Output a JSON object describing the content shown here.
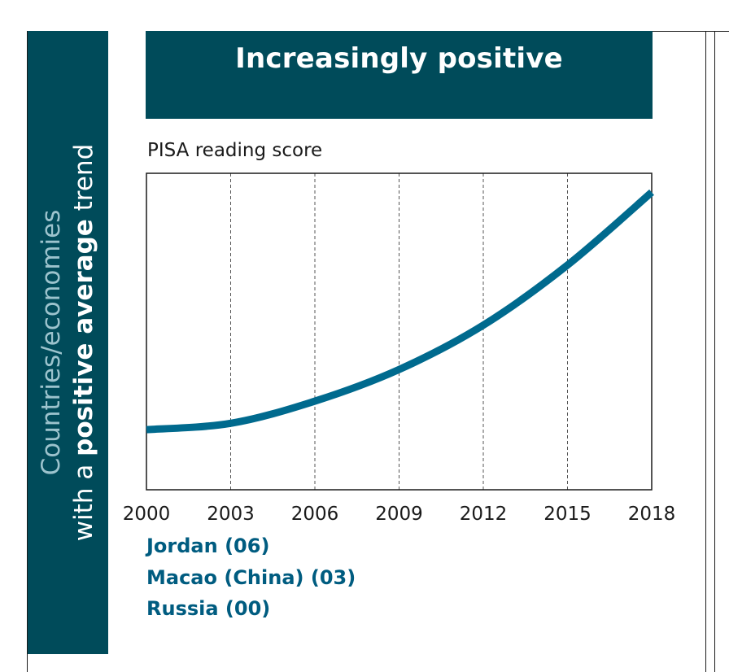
{
  "side_panel": {
    "line1": "Countries/economies",
    "line2_prefix": "with a ",
    "line2_bold": "positive average",
    "line2_suffix": " trend"
  },
  "header": {
    "title": "Increasingly positive"
  },
  "colors": {
    "panel_bg": "#004b5a",
    "side_text_light": "#9cc3cd",
    "curve": "#006a8e",
    "country_text": "#005c80"
  },
  "countries": [
    "Jordan (06)",
    "Macao (China) (03)",
    "Russia (00)"
  ],
  "chart_data": {
    "type": "line",
    "ylabel": "PISA reading score",
    "xlabel": "",
    "x_ticks": [
      2000,
      2003,
      2006,
      2009,
      2012,
      2015,
      2018
    ],
    "xlim": [
      2000,
      2018
    ],
    "ylim": [
      0,
      1
    ],
    "grid": "vertical dashed at each tick",
    "series": [
      {
        "x": [
          2000,
          2003,
          2006,
          2009,
          2012,
          2015,
          2018
        ],
        "y": [
          0.19,
          0.21,
          0.28,
          0.38,
          0.52,
          0.71,
          0.94
        ]
      }
    ]
  }
}
